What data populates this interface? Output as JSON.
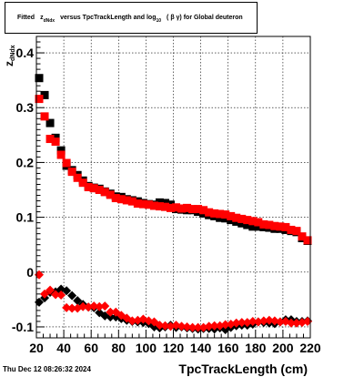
{
  "title": {
    "prefix": "Fitted",
    "symbol": "z",
    "symbol_sub": "dNdx",
    "middle": "versus TpcTrackLength and log",
    "log_sub": "10",
    "tail": "( β γ) for Global deuteron"
  },
  "footer_timestamp": "Thu Dec 12 08:26:32 2024",
  "colors": {
    "series_black": "#000000",
    "series_red": "#ff0000",
    "frame": "#000000",
    "grid": "#000000"
  },
  "chart_data": {
    "type": "scatter",
    "xlabel": "TpcTrackLength (cm)",
    "ylabel": {
      "main": "z",
      "sub": "dNdx"
    },
    "xlim": [
      20,
      220
    ],
    "ylim": [
      -0.12,
      0.43
    ],
    "grid": true,
    "xticks": [
      20,
      40,
      60,
      80,
      100,
      120,
      140,
      160,
      180,
      200,
      220
    ],
    "yticks": [
      -0.1,
      0,
      0.1,
      0.2,
      0.3,
      0.4
    ],
    "ytick_labels": [
      "-0.1",
      "0",
      "0.1",
      "0.2",
      "0.3",
      "0.4"
    ],
    "series": [
      {
        "marker": "square",
        "color": "#000000",
        "group": "upper",
        "x": [
          22,
          26,
          30,
          34,
          38,
          42,
          46,
          50,
          54,
          58,
          62,
          66,
          70,
          74,
          78,
          82,
          86,
          90,
          94,
          98,
          102,
          106,
          110,
          114,
          118,
          122,
          126,
          130,
          134,
          138,
          142,
          146,
          150,
          154,
          158,
          162,
          166,
          170,
          174,
          178,
          182,
          186,
          190,
          194,
          198,
          202,
          206,
          210,
          214,
          218
        ],
        "y": [
          0.354,
          0.323,
          0.272,
          0.245,
          0.222,
          0.194,
          0.186,
          0.177,
          0.167,
          0.157,
          0.154,
          0.152,
          0.147,
          0.143,
          0.138,
          0.137,
          0.133,
          0.131,
          0.129,
          0.126,
          0.124,
          0.123,
          0.127,
          0.126,
          0.123,
          0.115,
          0.114,
          0.113,
          0.113,
          0.11,
          0.107,
          0.104,
          0.102,
          0.099,
          0.098,
          0.095,
          0.092,
          0.089,
          0.086,
          0.083,
          0.083,
          0.082,
          0.081,
          0.079,
          0.079,
          0.077,
          0.075,
          0.073,
          0.062,
          0.057
        ]
      },
      {
        "marker": "square",
        "color": "#ff0000",
        "group": "upper",
        "x": [
          22,
          26,
          30,
          34,
          38,
          42,
          46,
          50,
          54,
          58,
          62,
          66,
          70,
          74,
          78,
          82,
          86,
          90,
          94,
          98,
          102,
          106,
          110,
          114,
          118,
          122,
          126,
          130,
          134,
          138,
          142,
          146,
          150,
          154,
          158,
          162,
          166,
          170,
          174,
          178,
          182,
          186,
          190,
          194,
          198,
          202,
          206,
          210,
          214,
          218
        ],
        "y": [
          0.316,
          0.284,
          0.243,
          0.238,
          0.214,
          0.199,
          0.183,
          0.172,
          0.163,
          0.155,
          0.153,
          0.15,
          0.146,
          0.141,
          0.135,
          0.133,
          0.131,
          0.129,
          0.125,
          0.124,
          0.123,
          0.121,
          0.12,
          0.119,
          0.117,
          0.118,
          0.116,
          0.117,
          0.115,
          0.115,
          0.113,
          0.109,
          0.107,
          0.106,
          0.105,
          0.102,
          0.099,
          0.097,
          0.095,
          0.093,
          0.091,
          0.087,
          0.086,
          0.084,
          0.083,
          0.082,
          0.077,
          0.075,
          0.065,
          0.058
        ]
      },
      {
        "marker": "diamond",
        "color": "#000000",
        "group": "lower",
        "x": [
          22,
          26,
          30,
          34,
          38,
          42,
          46,
          50,
          54,
          58,
          62,
          66,
          70,
          74,
          78,
          82,
          86,
          90,
          94,
          98,
          102,
          106,
          110,
          114,
          118,
          122,
          126,
          130,
          134,
          138,
          142,
          146,
          150,
          154,
          158,
          162,
          166,
          170,
          174,
          178,
          182,
          186,
          190,
          194,
          198,
          202,
          206,
          210,
          214,
          218
        ],
        "y": [
          -0.055,
          -0.047,
          -0.037,
          -0.036,
          -0.031,
          -0.034,
          -0.043,
          -0.052,
          -0.059,
          -0.064,
          -0.065,
          -0.074,
          -0.08,
          -0.082,
          -0.082,
          -0.085,
          -0.088,
          -0.09,
          -0.091,
          -0.092,
          -0.094,
          -0.1,
          -0.102,
          -0.1,
          -0.097,
          -0.101,
          -0.1,
          -0.102,
          -0.103,
          -0.104,
          -0.103,
          -0.103,
          -0.104,
          -0.102,
          -0.105,
          -0.101,
          -0.098,
          -0.097,
          -0.097,
          -0.095,
          -0.091,
          -0.092,
          -0.093,
          -0.094,
          -0.091,
          -0.087,
          -0.087,
          -0.09,
          -0.09,
          -0.089
        ]
      },
      {
        "marker": "diamond",
        "color": "#ff0000",
        "group": "lower",
        "x": [
          22,
          26,
          30,
          34,
          38,
          42,
          46,
          50,
          54,
          58,
          62,
          66,
          70,
          74,
          78,
          82,
          86,
          90,
          94,
          98,
          102,
          106,
          110,
          114,
          118,
          122,
          126,
          130,
          134,
          138,
          142,
          146,
          150,
          154,
          158,
          162,
          166,
          170,
          174,
          178,
          182,
          186,
          190,
          194,
          198,
          202,
          206,
          210,
          214,
          218
        ],
        "y": [
          -0.005,
          -0.04,
          -0.033,
          -0.041,
          -0.042,
          -0.065,
          -0.066,
          -0.066,
          -0.063,
          -0.064,
          -0.062,
          -0.063,
          -0.062,
          -0.073,
          -0.073,
          -0.079,
          -0.084,
          -0.089,
          -0.088,
          -0.086,
          -0.089,
          -0.091,
          -0.097,
          -0.098,
          -0.099,
          -0.097,
          -0.099,
          -0.1,
          -0.101,
          -0.101,
          -0.101,
          -0.099,
          -0.098,
          -0.098,
          -0.096,
          -0.095,
          -0.093,
          -0.092,
          -0.092,
          -0.09,
          -0.091,
          -0.089,
          -0.088,
          -0.089,
          -0.091,
          -0.09,
          -0.093,
          -0.093,
          -0.092,
          -0.09
        ]
      }
    ]
  }
}
